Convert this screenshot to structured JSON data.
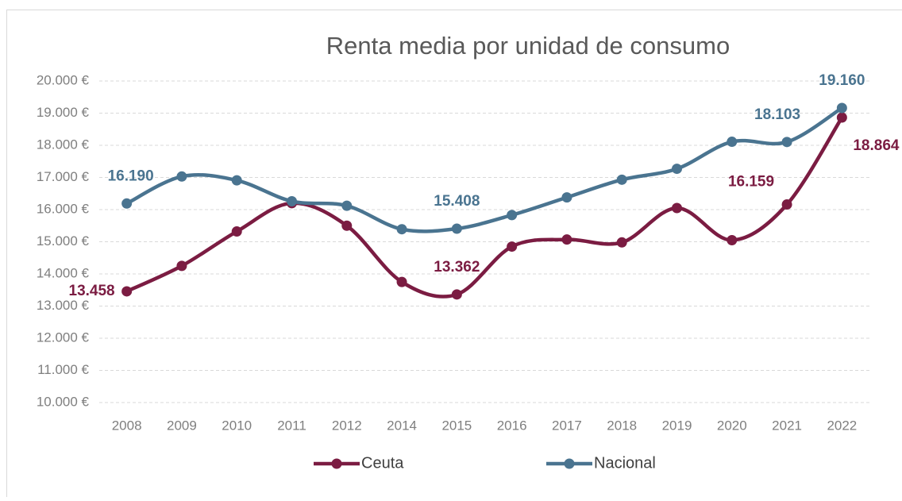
{
  "chart_data": {
    "type": "line",
    "title": "Renta media por unidad de consumo",
    "categories": [
      "2008",
      "2009",
      "2010",
      "2011",
      "2012",
      "2014",
      "2015",
      "2016",
      "2017",
      "2018",
      "2019",
      "2020",
      "2021",
      "2022"
    ],
    "series": [
      {
        "name": "Ceuta",
        "color": "#7b1c42",
        "values": [
          13458,
          14250,
          15320,
          16200,
          15500,
          13750,
          13362,
          14850,
          15070,
          14980,
          16050,
          15050,
          16159,
          18864
        ],
        "value_labels": [
          "13.458",
          null,
          null,
          null,
          null,
          null,
          "13.362",
          null,
          null,
          null,
          null,
          null,
          "16.159",
          "18.864"
        ]
      },
      {
        "name": "Nacional",
        "color": "#4a7490",
        "values": [
          16190,
          17030,
          16910,
          16260,
          16120,
          15390,
          15408,
          15830,
          16380,
          16930,
          17270,
          18110,
          18103,
          19160
        ],
        "value_labels": [
          "16.190",
          null,
          null,
          null,
          null,
          null,
          "15.408",
          null,
          null,
          null,
          null,
          null,
          "18.103",
          "19.160"
        ]
      }
    ],
    "ylim": [
      10000,
      20000
    ],
    "yticks": [
      {
        "value": 10000,
        "label": "10.000 €"
      },
      {
        "value": 11000,
        "label": "11.000 €"
      },
      {
        "value": 12000,
        "label": "12.000 €"
      },
      {
        "value": 13000,
        "label": "13.000 €"
      },
      {
        "value": 14000,
        "label": "14.000 €"
      },
      {
        "value": 15000,
        "label": "15.000 €"
      },
      {
        "value": 16000,
        "label": "16.000 €"
      },
      {
        "value": 17000,
        "label": "17.000 €"
      },
      {
        "value": 18000,
        "label": "18.000 €"
      },
      {
        "value": 19000,
        "label": "19.000 €"
      },
      {
        "value": 20000,
        "label": "20.000 €"
      }
    ],
    "grid": true,
    "legend": "bottom"
  }
}
